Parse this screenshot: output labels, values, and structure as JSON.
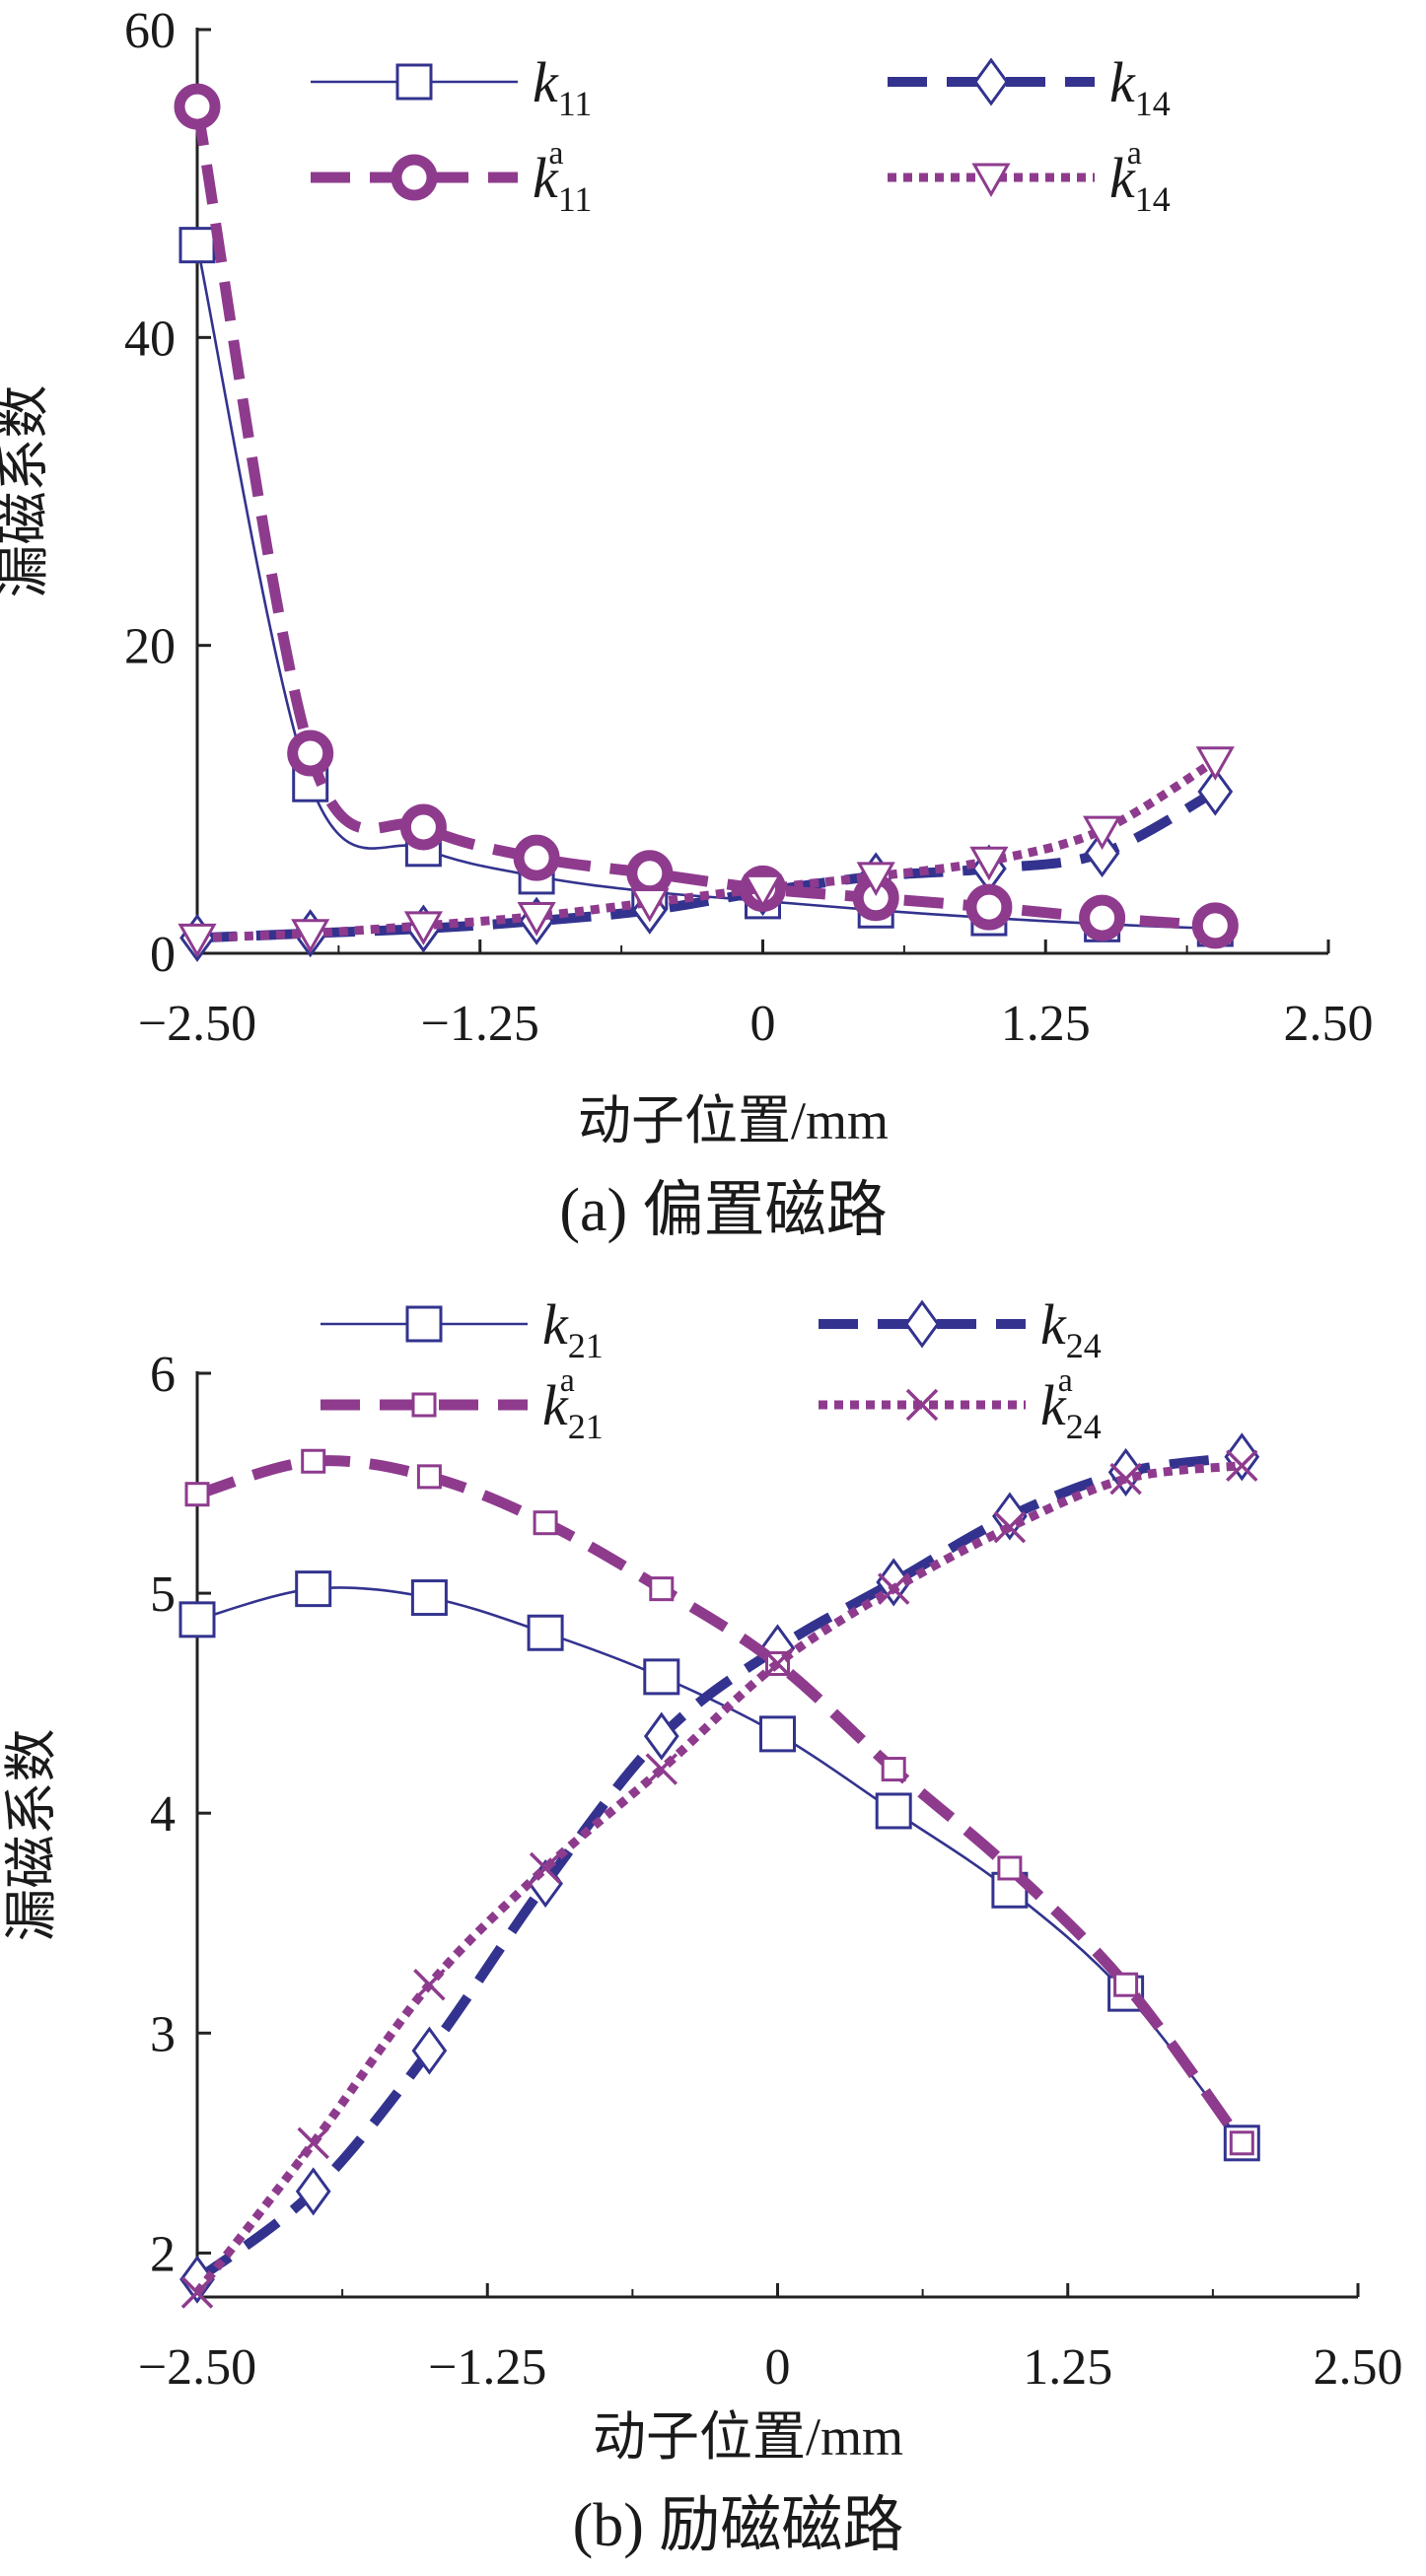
{
  "chart_data": [
    {
      "type": "line",
      "caption": "(a)  偏置磁路",
      "xlabel": "动子位置/mm",
      "ylabel": "漏磁系数",
      "xlim": [
        -2.5,
        2.5
      ],
      "ylim": [
        0,
        60
      ],
      "xticks": [
        "−2.50",
        "−1.25",
        "0",
        "1.25",
        "2.50"
      ],
      "yticks": [
        "0",
        "20",
        "40",
        "60"
      ],
      "legend": "top",
      "series": [
        {
          "base": "k",
          "sub": "11",
          "sup": "",
          "color": "#33338f",
          "style": "solid-thin",
          "marker": "square",
          "x": [
            -2.5,
            -2.0,
            -1.5,
            -1.0,
            -0.5,
            0.0,
            0.5,
            1.0,
            1.5,
            2.0
          ],
          "values": [
            46,
            11,
            6.8,
            5.0,
            4.0,
            3.4,
            2.8,
            2.3,
            1.9,
            1.6
          ]
        },
        {
          "base": "k",
          "sub": "14",
          "sup": "",
          "color": "#33338f",
          "style": "dash",
          "marker": "diamond",
          "x": [
            -2.5,
            -2.0,
            -1.5,
            -1.0,
            -0.5,
            0.0,
            0.5,
            1.0,
            1.5,
            2.0
          ],
          "values": [
            1.0,
            1.3,
            1.6,
            2.1,
            2.8,
            4.0,
            5.0,
            5.5,
            6.5,
            10.5
          ]
        },
        {
          "base": "k",
          "sub": "11",
          "sup": "a",
          "color": "#8e3b8e",
          "style": "dash-thick",
          "marker": "circle",
          "x": [
            -2.5,
            -2.0,
            -1.5,
            -1.0,
            -0.5,
            0.0,
            0.5,
            1.0,
            1.5,
            2.0
          ],
          "values": [
            55,
            13,
            8.2,
            6.2,
            5.2,
            4.2,
            3.6,
            3.0,
            2.3,
            1.8
          ]
        },
        {
          "base": "k",
          "sub": "14",
          "sup": "a",
          "color": "#8e3b8e",
          "style": "dot",
          "marker": "triangle-down",
          "x": [
            -2.5,
            -2.0,
            -1.5,
            -1.0,
            -0.5,
            0.0,
            0.5,
            1.0,
            1.5,
            2.0
          ],
          "values": [
            1.0,
            1.3,
            1.8,
            2.4,
            3.3,
            4.2,
            5.0,
            6.0,
            8.0,
            12.5
          ]
        }
      ]
    },
    {
      "type": "line",
      "caption": "(b)  励磁磁路",
      "xlabel": "动子位置/mm",
      "ylabel": "漏磁系数",
      "xlim": [
        -2.5,
        2.5
      ],
      "ylim": [
        1.8,
        6
      ],
      "xticks": [
        "−2.50",
        "−1.25",
        "0",
        "1.25",
        "2.50"
      ],
      "yticks": [
        "2",
        "3",
        "4",
        "5",
        "6"
      ],
      "legend": "top",
      "series": [
        {
          "base": "k",
          "sub": "21",
          "sup": "",
          "color": "#33338f",
          "style": "solid-thin",
          "marker": "square",
          "x": [
            -2.5,
            -2.0,
            -1.5,
            -1.0,
            -0.5,
            0.0,
            0.5,
            1.0,
            1.5,
            2.0
          ],
          "values": [
            4.88,
            5.02,
            4.98,
            4.82,
            4.62,
            4.36,
            4.01,
            3.65,
            3.18,
            2.5
          ]
        },
        {
          "base": "k",
          "sub": "24",
          "sup": "",
          "color": "#33338f",
          "style": "dash",
          "marker": "diamond",
          "x": [
            -2.5,
            -2.0,
            -1.5,
            -1.0,
            -0.5,
            0.0,
            0.5,
            1.0,
            1.5,
            2.0
          ],
          "values": [
            1.88,
            2.28,
            2.92,
            3.68,
            4.35,
            4.75,
            5.05,
            5.35,
            5.55,
            5.62
          ]
        },
        {
          "base": "k",
          "sub": "21",
          "sup": "a",
          "color": "#8e3b8e",
          "style": "dash-thick",
          "marker": "square-small",
          "x": [
            -2.5,
            -2.0,
            -1.5,
            -1.0,
            -0.5,
            0.0,
            0.5,
            1.0,
            1.5,
            2.0
          ],
          "values": [
            5.45,
            5.6,
            5.53,
            5.32,
            5.02,
            4.68,
            4.2,
            3.75,
            3.22,
            2.5
          ]
        },
        {
          "base": "k",
          "sub": "24",
          "sup": "a",
          "color": "#8e3b8e",
          "style": "dot",
          "marker": "x",
          "x": [
            -2.5,
            -2.0,
            -1.5,
            -1.0,
            -0.5,
            0.0,
            0.5,
            1.0,
            1.5,
            2.0
          ],
          "values": [
            1.82,
            2.5,
            3.22,
            3.75,
            4.2,
            4.68,
            5.02,
            5.3,
            5.52,
            5.58
          ]
        }
      ]
    }
  ]
}
